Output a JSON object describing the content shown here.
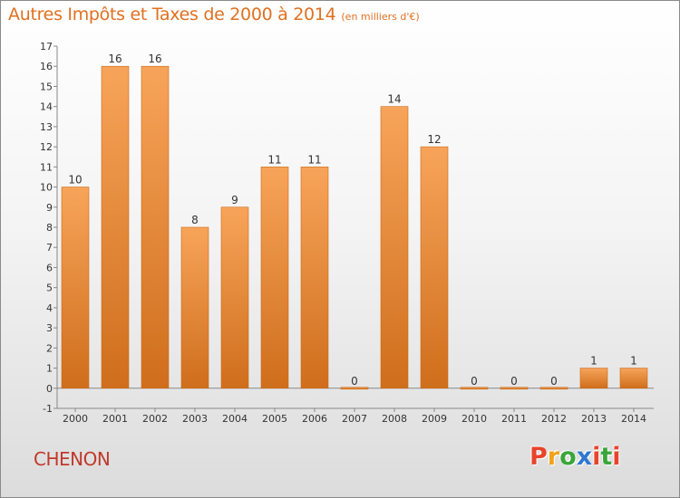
{
  "header": {
    "title": "Autres Impôts et Taxes de 2000 à 2014",
    "unit": "(en milliers d'€)"
  },
  "footer": {
    "commune": "CHENON",
    "logo": "Proxiti",
    "logo_colors": [
      "#e8442c",
      "#f0a21a",
      "#3aa63a",
      "#2f78d0",
      "#e8442c",
      "#3aa63a",
      "#e8442c"
    ]
  },
  "chart_data": {
    "type": "bar",
    "title": "Autres Impôts et Taxes de 2000 à 2014",
    "subtitle": "(en milliers d'€)",
    "xlabel": "",
    "ylabel": "",
    "categories": [
      "2000",
      "2001",
      "2002",
      "2003",
      "2004",
      "2005",
      "2006",
      "2007",
      "2008",
      "2009",
      "2010",
      "2011",
      "2012",
      "2013",
      "2014"
    ],
    "values": [
      10,
      16,
      16,
      8,
      9,
      11,
      11,
      0,
      14,
      12,
      0,
      0,
      0,
      1,
      1
    ],
    "data_labels": [
      "10",
      "16",
      "16",
      "8",
      "9",
      "11",
      "11",
      "0",
      "14",
      "12",
      "0",
      "0",
      "0",
      "1",
      "1"
    ],
    "yticks": [
      -1,
      0,
      1,
      2,
      3,
      4,
      5,
      6,
      7,
      8,
      9,
      10,
      11,
      12,
      13,
      14,
      15,
      16,
      17
    ],
    "ytick_labels": [
      "-1",
      "0",
      "1",
      "2",
      "3",
      "4",
      "5",
      "6",
      "7",
      "8",
      "9",
      "10",
      "11",
      "12",
      "13",
      "14",
      "15",
      "16",
      "17"
    ],
    "ylim": [
      -1,
      17
    ],
    "grid": false,
    "legend": "none",
    "bar_color_light": "#f7a45a",
    "bar_color_dark": "#cf6e1c"
  }
}
